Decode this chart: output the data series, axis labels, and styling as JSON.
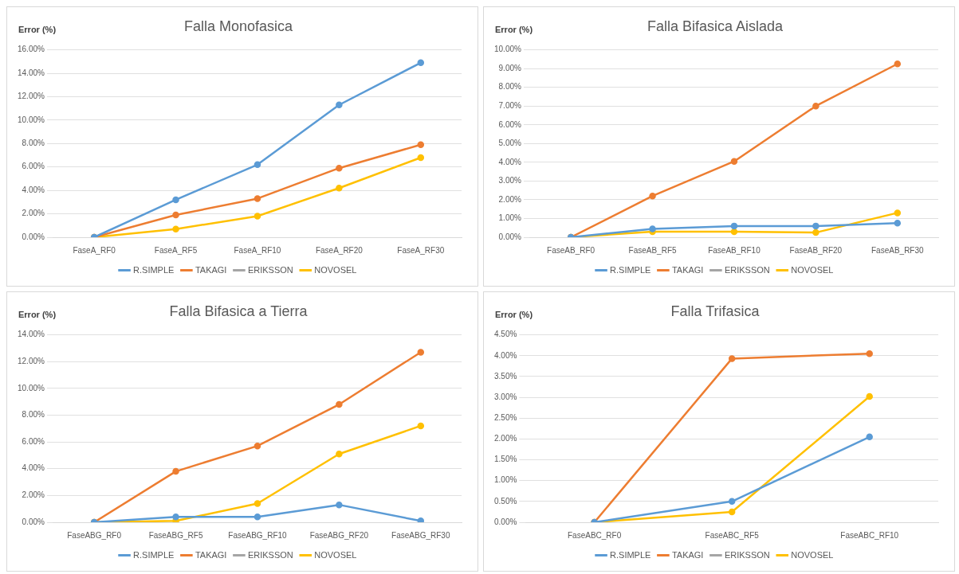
{
  "chart_data": [
    {
      "type": "line",
      "title": "Falla Monofasica",
      "ylabel": "Error (%)",
      "categories": [
        "FaseA_RF0",
        "FaseA_RF5",
        "FaseA_RF10",
        "FaseA_RF20",
        "FaseA_RF30"
      ],
      "series": [
        {
          "name": "R.SIMPLE",
          "color": "#5b9bd5",
          "values": [
            0,
            3.2,
            6.2,
            11.3,
            14.9
          ]
        },
        {
          "name": "TAKAGI",
          "color": "#ed7d31",
          "values": [
            0,
            1.9,
            3.3,
            5.9,
            7.9
          ]
        },
        {
          "name": "ERIKSSON",
          "color": "#a5a5a5",
          "values": [
            null,
            null,
            null,
            null,
            null
          ]
        },
        {
          "name": "NOVOSEL",
          "color": "#ffc000",
          "values": [
            0,
            0.7,
            1.8,
            4.2,
            6.8
          ]
        }
      ],
      "ylim": [
        0,
        16
      ],
      "yticks": [
        {
          "value": 0,
          "label": "0.00%"
        },
        {
          "value": 2,
          "label": "2.00%"
        },
        {
          "value": 4,
          "label": "4.00%"
        },
        {
          "value": 6,
          "label": "6.00%"
        },
        {
          "value": 8,
          "label": "8.00%"
        },
        {
          "value": 10,
          "label": "10.00%"
        },
        {
          "value": 12,
          "label": "12.00%"
        },
        {
          "value": 14,
          "label": "14.00%"
        },
        {
          "value": 16,
          "label": "16.00%"
        }
      ],
      "grid": "y",
      "legend": "bottom",
      "marker": "circle"
    },
    {
      "type": "line",
      "title": "Falla Bifasica Aislada",
      "ylabel": "Error (%)",
      "categories": [
        "FaseAB_RF0",
        "FaseAB_RF5",
        "FaseAB_RF10",
        "FaseAB_RF20",
        "FaseAB_RF30"
      ],
      "series": [
        {
          "name": "R.SIMPLE",
          "color": "#5b9bd5",
          "values": [
            0,
            0.45,
            0.6,
            0.6,
            0.75
          ]
        },
        {
          "name": "TAKAGI",
          "color": "#ed7d31",
          "values": [
            0,
            2.2,
            4.05,
            7.0,
            9.25
          ]
        },
        {
          "name": "ERIKSSON",
          "color": "#a5a5a5",
          "values": [
            null,
            null,
            null,
            null,
            null
          ]
        },
        {
          "name": "NOVOSEL",
          "color": "#ffc000",
          "values": [
            0,
            0.3,
            0.3,
            0.25,
            1.3
          ]
        }
      ],
      "ylim": [
        0,
        10
      ],
      "yticks": [
        {
          "value": 0,
          "label": "0.00%"
        },
        {
          "value": 1,
          "label": "1.00%"
        },
        {
          "value": 2,
          "label": "2.00%"
        },
        {
          "value": 3,
          "label": "3.00%"
        },
        {
          "value": 4,
          "label": "4.00%"
        },
        {
          "value": 5,
          "label": "5.00%"
        },
        {
          "value": 6,
          "label": "6.00%"
        },
        {
          "value": 7,
          "label": "7.00%"
        },
        {
          "value": 8,
          "label": "8.00%"
        },
        {
          "value": 9,
          "label": "9.00%"
        },
        {
          "value": 10,
          "label": "10.00%"
        }
      ],
      "grid": "y",
      "legend": "bottom",
      "marker": "circle"
    },
    {
      "type": "line",
      "title": "Falla Bifasica a Tierra",
      "ylabel": "Error (%)",
      "categories": [
        "FaseABG_RF0",
        "FaseABG_RF5",
        "FaseABG_RF10",
        "FaseABG_RF20",
        "FaseABG_RF30"
      ],
      "series": [
        {
          "name": "R.SIMPLE",
          "color": "#5b9bd5",
          "values": [
            0,
            0.4,
            0.4,
            1.3,
            0.1
          ]
        },
        {
          "name": "TAKAGI",
          "color": "#ed7d31",
          "values": [
            0,
            3.8,
            5.7,
            8.8,
            12.7
          ]
        },
        {
          "name": "ERIKSSON",
          "color": "#a5a5a5",
          "values": [
            null,
            null,
            null,
            null,
            null
          ]
        },
        {
          "name": "NOVOSEL",
          "color": "#ffc000",
          "values": [
            0,
            0.1,
            1.4,
            5.1,
            7.2
          ]
        }
      ],
      "ylim": [
        0,
        14
      ],
      "yticks": [
        {
          "value": 0,
          "label": "0.00%"
        },
        {
          "value": 2,
          "label": "2.00%"
        },
        {
          "value": 4,
          "label": "4.00%"
        },
        {
          "value": 6,
          "label": "6.00%"
        },
        {
          "value": 8,
          "label": "8.00%"
        },
        {
          "value": 10,
          "label": "10.00%"
        },
        {
          "value": 12,
          "label": "12.00%"
        },
        {
          "value": 14,
          "label": "14.00%"
        }
      ],
      "grid": "y",
      "legend": "bottom",
      "marker": "circle"
    },
    {
      "type": "line",
      "title": "Falla Trifasica",
      "ylabel": "Error (%)",
      "categories": [
        "FaseABC_RF0",
        "FaseABC_RF5",
        "FaseABC_RF10"
      ],
      "series": [
        {
          "name": "R.SIMPLE",
          "color": "#5b9bd5",
          "values": [
            0,
            0.5,
            2.05
          ]
        },
        {
          "name": "TAKAGI",
          "color": "#ed7d31",
          "values": [
            0,
            3.93,
            4.05
          ]
        },
        {
          "name": "ERIKSSON",
          "color": "#a5a5a5",
          "values": [
            null,
            null,
            null
          ]
        },
        {
          "name": "NOVOSEL",
          "color": "#ffc000",
          "values": [
            0,
            0.25,
            3.02
          ]
        }
      ],
      "ylim": [
        0,
        4.5
      ],
      "yticks": [
        {
          "value": 0,
          "label": "0.00%"
        },
        {
          "value": 0.5,
          "label": "0.50%"
        },
        {
          "value": 1,
          "label": "1.00%"
        },
        {
          "value": 1.5,
          "label": "1.50%"
        },
        {
          "value": 2,
          "label": "2.00%"
        },
        {
          "value": 2.5,
          "label": "2.50%"
        },
        {
          "value": 3,
          "label": "3.00%"
        },
        {
          "value": 3.5,
          "label": "3.50%"
        },
        {
          "value": 4,
          "label": "4.00%"
        },
        {
          "value": 4.5,
          "label": "4.50%"
        }
      ],
      "grid": "y",
      "legend": "bottom",
      "marker": "circle"
    }
  ]
}
